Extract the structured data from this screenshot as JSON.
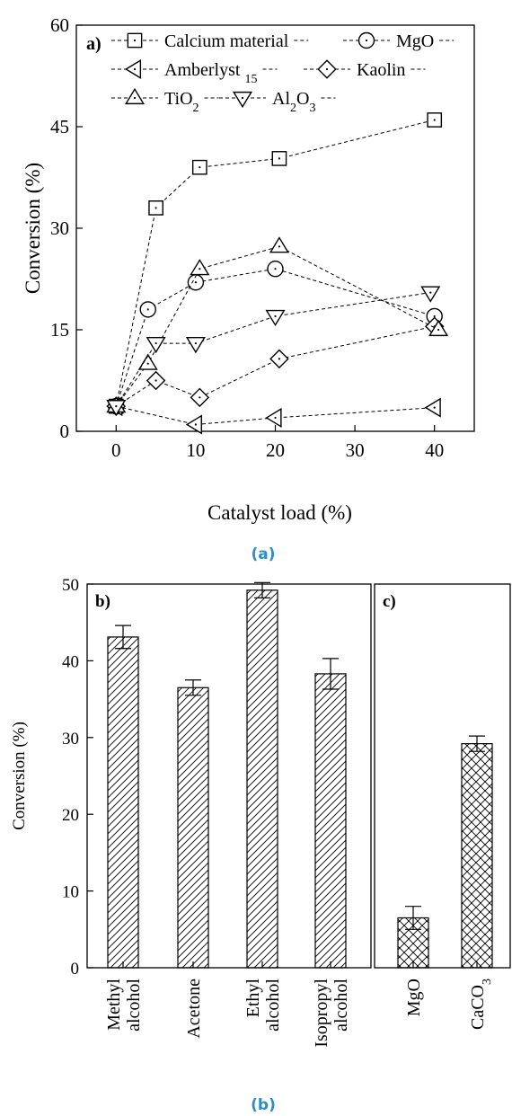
{
  "captions": {
    "a": "(a)",
    "b": "(b)"
  },
  "colors": {
    "caption": "#2a8fc1",
    "ink": "#000000"
  },
  "chart_data": [
    {
      "panel": "a)",
      "type": "line",
      "xlabel": "Catalyst load (%)",
      "ylabel": "Conversion (%)",
      "xlim": [
        -5,
        45
      ],
      "ylim": [
        0,
        60
      ],
      "xticks": [
        0,
        10,
        20,
        30,
        40
      ],
      "yticks": [
        0,
        15,
        30,
        45,
        60
      ],
      "grid": false,
      "legend_position": "top",
      "series": [
        {
          "name": "Calcium material",
          "marker": "square",
          "points": [
            [
              0,
              3.7
            ],
            [
              5,
              33
            ],
            [
              10.5,
              39
            ],
            [
              20.5,
              40.3
            ],
            [
              40,
              46
            ]
          ]
        },
        {
          "name": "MgO",
          "marker": "circle",
          "points": [
            [
              0,
              3.7
            ],
            [
              4,
              18
            ],
            [
              10,
              22
            ],
            [
              20,
              24
            ],
            [
              40,
              17
            ]
          ]
        },
        {
          "name": "Amberlyst 15",
          "marker": "triangle-left",
          "points": [
            [
              0,
              3.7
            ],
            [
              10,
              1
            ],
            [
              20,
              2
            ],
            [
              40,
              3.5
            ]
          ]
        },
        {
          "name": "Kaolin",
          "marker": "diamond",
          "points": [
            [
              0,
              3.7
            ],
            [
              5,
              7.5
            ],
            [
              10.5,
              5
            ],
            [
              20.5,
              10.7
            ],
            [
              40,
              15.5
            ]
          ]
        },
        {
          "name": "TiO2",
          "marker": "triangle-up",
          "points": [
            [
              0,
              3.7
            ],
            [
              4,
              10
            ],
            [
              10.5,
              24
            ],
            [
              20.5,
              27.3
            ],
            [
              40.5,
              15
            ]
          ]
        },
        {
          "name": "Al2O3",
          "marker": "triangle-down",
          "points": [
            [
              0,
              3.7
            ],
            [
              5,
              13
            ],
            [
              10,
              13
            ],
            [
              20,
              17
            ],
            [
              39.5,
              20.5
            ]
          ]
        }
      ]
    },
    {
      "panel": "b)",
      "type": "bar",
      "ylabel": "Conversion (%)",
      "ylim": [
        0,
        50
      ],
      "yticks": [
        0,
        10,
        20,
        30,
        40,
        50
      ],
      "categories": [
        [
          "Methyl",
          "alcohol"
        ],
        [
          "Acetone"
        ],
        [
          "Ethyl",
          "alcohol"
        ],
        [
          "Isopropyl",
          "alcohol"
        ]
      ],
      "values": [
        43.1,
        36.5,
        49.2,
        38.3
      ],
      "errors": [
        1.5,
        1.0,
        1.0,
        2.0
      ],
      "hatch": "diagonal"
    },
    {
      "panel": "c)",
      "type": "bar",
      "ylim": [
        0,
        50
      ],
      "categories": [
        [
          "MgO"
        ],
        [
          "CaCO3"
        ]
      ],
      "values": [
        6.5,
        29.2
      ],
      "errors": [
        1.5,
        1.0
      ],
      "hatch": "cross"
    }
  ]
}
